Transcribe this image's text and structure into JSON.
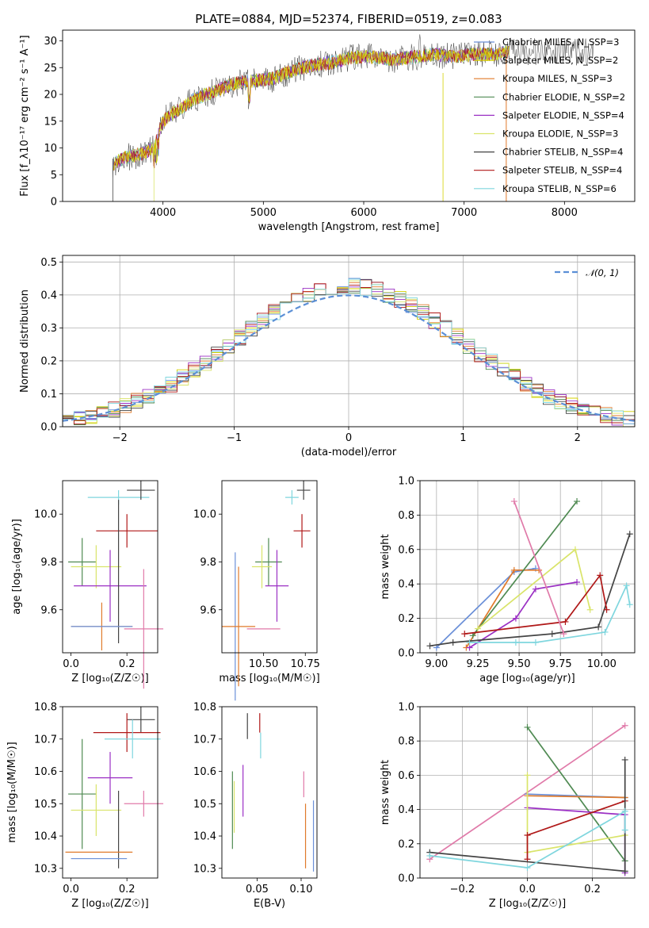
{
  "figure": {
    "title": "PLATE=0884, MJD=52374, FIBERID=0519, z=0.083",
    "colors": {
      "chabrier_miles": "#6a8fd8",
      "salpeter_miles": "#d4d000",
      "kroupa_miles": "#e07a2a",
      "chabrier_elodie": "#4f8a52",
      "salpeter_elodie": "#9b30c4",
      "kroupa_elodie": "#d9e46a",
      "chabrier_stelib": "#444444",
      "salpeter_stelib": "#b01818",
      "kroupa_stelib": "#7fd6de",
      "pink": "#e07aa9"
    }
  },
  "chart_data": [
    {
      "id": "spectrum",
      "type": "line",
      "xlabel": "wavelength [Angstrom, rest frame]",
      "ylabel": "Flux [f_λ10⁻¹⁷ erg cm⁻² s⁻¹ A⁻¹]",
      "xlim": [
        3000,
        8700
      ],
      "ylim": [
        0,
        32
      ],
      "xticks": [
        4000,
        5000,
        6000,
        7000,
        8000
      ],
      "yticks": [
        0,
        5,
        10,
        15,
        20,
        25,
        30
      ],
      "legend_position": "top-right",
      "legend": [
        {
          "label": "Chabrier MILES, N_SSP=3",
          "color": "#6a8fd8"
        },
        {
          "label": "Salpeter MILES, N_SSP=2",
          "color": "#d4d000"
        },
        {
          "label": "Kroupa MILES, N_SSP=3",
          "color": "#e07a2a"
        },
        {
          "label": "Chabrier ELODIE, N_SSP=2",
          "color": "#4f8a52"
        },
        {
          "label": "Salpeter ELODIE, N_SSP=4",
          "color": "#9b30c4"
        },
        {
          "label": "Kroupa ELODIE, N_SSP=3",
          "color": "#d9e46a"
        },
        {
          "label": "Chabrier STELIB, N_SSP=4",
          "color": "#444444"
        },
        {
          "label": "Salpeter STELIB, N_SSP=4",
          "color": "#b01818"
        },
        {
          "label": "Kroupa STELIB, N_SSP=6",
          "color": "#7fd6de"
        }
      ],
      "continuum": {
        "x": [
          3500,
          3600,
          3700,
          3800,
          3900,
          4000,
          4100,
          4200,
          4300,
          4500,
          4700,
          4900,
          5100,
          5300,
          5500,
          5700,
          5900,
          6100,
          6300,
          6500,
          6700,
          6900,
          7100,
          7300,
          7450
        ],
        "y": [
          7,
          8,
          8.5,
          9,
          10,
          15,
          16.5,
          17.5,
          19,
          20.5,
          22,
          22.5,
          23,
          24.5,
          25.5,
          26,
          27,
          27,
          26.5,
          27,
          27.5,
          27,
          27.5,
          27.5,
          28
        ]
      }
    },
    {
      "id": "residuals",
      "type": "histogram",
      "xlabel": "(data-model)/error",
      "ylabel": "Normed distribution",
      "xlim": [
        -2.5,
        2.5
      ],
      "ylim": [
        0,
        0.52
      ],
      "xticks": [
        -2,
        -1,
        0,
        1,
        2
      ],
      "xtick_labels": [
        "−2",
        "−1",
        "0",
        "1",
        "2"
      ],
      "yticks": [
        0.0,
        0.1,
        0.2,
        0.3,
        0.4,
        0.5
      ],
      "grid": true,
      "legend_label": "𝒩(0, 1)",
      "legend_position": "top-right",
      "bin_width": 0.1
    },
    {
      "id": "age-Z",
      "type": "errorbar",
      "xlabel": "Z [log₁₀(Z/Z☉)]",
      "ylabel": "age  [log₁₀(age/yr)]",
      "xlim": [
        -0.03,
        0.31
      ],
      "ylim": [
        9.42,
        10.14
      ],
      "xticks": [
        0.0,
        0.2
      ],
      "yticks": [
        9.6,
        9.8,
        10.0
      ],
      "points": [
        {
          "color": "#7fd6de",
          "x": 0.17,
          "y": 10.07,
          "xerr": 0.11,
          "yerr": 0.03
        },
        {
          "color": "#444444",
          "x": 0.25,
          "y": 10.1,
          "xerr": 0.05,
          "yerr": 0.04
        },
        {
          "color": "#b01818",
          "x": 0.2,
          "y": 9.93,
          "xerr": 0.11,
          "yerr": 0.07
        },
        {
          "color": "#4f8a52",
          "x": 0.04,
          "y": 9.8,
          "xerr": 0.05,
          "yerr": 0.1
        },
        {
          "color": "#d9e46a",
          "x": 0.09,
          "y": 9.78,
          "xerr": 0.09,
          "yerr": 0.09
        },
        {
          "color": "#9b30c4",
          "x": 0.14,
          "y": 9.7,
          "xerr": 0.13,
          "yerr": 0.15
        },
        {
          "color": "#444444",
          "x": 0.17,
          "y": 9.76,
          "xerr": 0.0,
          "yerr": 0.3
        },
        {
          "color": "#e07aa9",
          "x": 0.26,
          "y": 9.52,
          "xerr": 0.07,
          "yerr": 0.25
        },
        {
          "color": "#e07a2a",
          "x": 0.11,
          "y": 9.53,
          "xerr": 0.11,
          "yerr": 0.1
        },
        {
          "color": "#6a8fd8",
          "x": 0.11,
          "y": 9.53,
          "xerr": 0.11,
          "yerr": 0.0
        }
      ]
    },
    {
      "id": "age-mass",
      "type": "errorbar",
      "xlabel": "mass [log₁₀(M/M☉)]",
      "ylabel": "",
      "xlim": [
        10.25,
        10.82
      ],
      "ylim": [
        9.42,
        10.14
      ],
      "xticks": [
        10.5,
        10.75
      ],
      "yticks": [
        9.6,
        9.8,
        10.0
      ],
      "points": [
        {
          "color": "#7fd6de",
          "x": 10.67,
          "y": 10.07,
          "xerr": 0.04,
          "yerr": 0.03
        },
        {
          "color": "#444444",
          "x": 10.74,
          "y": 10.1,
          "xerr": 0.04,
          "yerr": 0.04
        },
        {
          "color": "#b01818",
          "x": 10.73,
          "y": 9.93,
          "xerr": 0.05,
          "yerr": 0.07
        },
        {
          "color": "#4f8a52",
          "x": 10.53,
          "y": 9.8,
          "xerr": 0.08,
          "yerr": 0.1
        },
        {
          "color": "#d9e46a",
          "x": 10.49,
          "y": 9.78,
          "xerr": 0.06,
          "yerr": 0.09
        },
        {
          "color": "#9b30c4",
          "x": 10.58,
          "y": 9.7,
          "xerr": 0.07,
          "yerr": 0.15
        },
        {
          "color": "#6a8fd8",
          "x": 10.33,
          "y": 9.53,
          "xerr": 0.0,
          "yerr": 0.31
        },
        {
          "color": "#e07a2a",
          "x": 10.35,
          "y": 9.53,
          "xerr": 0.1,
          "yerr": 0.25
        },
        {
          "color": "#e07aa9",
          "x": 10.5,
          "y": 9.52,
          "xerr": 0.1,
          "yerr": 0.0
        }
      ]
    },
    {
      "id": "weight-age",
      "type": "line",
      "xlabel": "age  [log₁₀(age/yr)]",
      "ylabel": "mass weight",
      "xlim": [
        8.9,
        10.2
      ],
      "ylim": [
        0,
        1.0
      ],
      "xticks": [
        9.0,
        9.25,
        9.5,
        9.75,
        10.0
      ],
      "yticks": [
        0.0,
        0.2,
        0.4,
        0.6,
        0.8,
        1.0
      ],
      "grid": true,
      "series": [
        {
          "color": "#6a8fd8",
          "x": [
            9.0,
            9.47,
            9.6
          ],
          "y": [
            0.03,
            0.47,
            0.49
          ]
        },
        {
          "color": "#e07a2a",
          "x": [
            9.18,
            9.47,
            9.62
          ],
          "y": [
            0.03,
            0.48,
            0.48
          ]
        },
        {
          "color": "#4f8a52",
          "x": [
            9.22,
            9.85
          ],
          "y": [
            0.1,
            0.88
          ]
        },
        {
          "color": "#9b30c4",
          "x": [
            9.2,
            9.48,
            9.6,
            9.85
          ],
          "y": [
            0.03,
            0.2,
            0.37,
            0.41
          ]
        },
        {
          "color": "#d9e46a",
          "x": [
            9.25,
            9.84,
            9.93
          ],
          "y": [
            0.14,
            0.6,
            0.25
          ]
        },
        {
          "color": "#444444",
          "x": [
            8.96,
            9.1,
            9.7,
            9.98,
            10.17
          ],
          "y": [
            0.04,
            0.06,
            0.11,
            0.15,
            0.69
          ]
        },
        {
          "color": "#b01818",
          "x": [
            9.17,
            9.78,
            9.99,
            10.03
          ],
          "y": [
            0.11,
            0.18,
            0.45,
            0.25
          ]
        },
        {
          "color": "#7fd6de",
          "x": [
            9.2,
            9.48,
            9.6,
            10.02,
            10.15,
            10.17
          ],
          "y": [
            0.06,
            0.06,
            0.06,
            0.12,
            0.39,
            0.28
          ]
        },
        {
          "color": "#e07aa9",
          "x": [
            9.47,
            9.77
          ],
          "y": [
            0.88,
            0.11
          ]
        }
      ]
    },
    {
      "id": "mass-Z",
      "type": "errorbar",
      "xlabel": "Z [log₁₀(Z/Z☉)]",
      "ylabel": "mass [log₁₀(M/M☉)]",
      "xlim": [
        -0.03,
        0.31
      ],
      "ylim": [
        10.27,
        10.8
      ],
      "xticks": [
        0.0,
        0.2
      ],
      "yticks": [
        10.3,
        10.4,
        10.5,
        10.6,
        10.7,
        10.8
      ],
      "points": [
        {
          "color": "#444444",
          "x": 0.25,
          "y": 10.76,
          "xerr": 0.05,
          "yerr": 0.04
        },
        {
          "color": "#b01818",
          "x": 0.2,
          "y": 10.72,
          "xerr": 0.12,
          "yerr": 0.06
        },
        {
          "color": "#7fd6de",
          "x": 0.22,
          "y": 10.7,
          "xerr": 0.1,
          "yerr": 0.06
        },
        {
          "color": "#9b30c4",
          "x": 0.14,
          "y": 10.58,
          "xerr": 0.08,
          "yerr": 0.08
        },
        {
          "color": "#4f8a52",
          "x": 0.04,
          "y": 10.53,
          "xerr": 0.05,
          "yerr": 0.17
        },
        {
          "color": "#e07aa9",
          "x": 0.26,
          "y": 10.5,
          "xerr": 0.07,
          "yerr": 0.04
        },
        {
          "color": "#d9e46a",
          "x": 0.09,
          "y": 10.48,
          "xerr": 0.09,
          "yerr": 0.08
        },
        {
          "color": "#444444",
          "x": 0.17,
          "y": 10.42,
          "xerr": 0.0,
          "yerr": 0.12
        },
        {
          "color": "#e07a2a",
          "x": 0.1,
          "y": 10.35,
          "xerr": 0.12,
          "yerr": 0.0
        },
        {
          "color": "#6a8fd8",
          "x": 0.1,
          "y": 10.33,
          "xerr": 0.1,
          "yerr": 0.0
        }
      ]
    },
    {
      "id": "mass-EBV",
      "type": "errorbar",
      "xlabel": "E(B-V)",
      "ylabel": "",
      "xlim": [
        0.01,
        0.118
      ],
      "ylim": [
        10.27,
        10.8
      ],
      "xticks": [
        0.05,
        0.1
      ],
      "yticks": [
        10.3,
        10.4,
        10.5,
        10.6,
        10.7,
        10.8
      ],
      "points": [
        {
          "color": "#444444",
          "x": 0.039,
          "y": 10.74,
          "xerr": 0,
          "yerr": 0.04
        },
        {
          "color": "#b01818",
          "x": 0.053,
          "y": 10.75,
          "xerr": 0,
          "yerr": 0.03
        },
        {
          "color": "#7fd6de",
          "x": 0.054,
          "y": 10.68,
          "xerr": 0,
          "yerr": 0.04
        },
        {
          "color": "#4f8a52",
          "x": 0.022,
          "y": 10.48,
          "xerr": 0,
          "yerr": 0.12
        },
        {
          "color": "#d9e46a",
          "x": 0.024,
          "y": 10.49,
          "xerr": 0,
          "yerr": 0.08
        },
        {
          "color": "#9b30c4",
          "x": 0.034,
          "y": 10.54,
          "xerr": 0,
          "yerr": 0.08
        },
        {
          "color": "#e07aa9",
          "x": 0.103,
          "y": 10.56,
          "xerr": 0,
          "yerr": 0.04
        },
        {
          "color": "#e07a2a",
          "x": 0.105,
          "y": 10.4,
          "xerr": 0,
          "yerr": 0.1
        },
        {
          "color": "#6a8fd8",
          "x": 0.114,
          "y": 10.4,
          "xerr": 0,
          "yerr": 0.11
        }
      ]
    },
    {
      "id": "weight-Z",
      "type": "line",
      "xlabel": "Z [log₁₀(Z/Z☉)]",
      "ylabel": "mass weight",
      "xlim": [
        -0.33,
        0.33
      ],
      "ylim": [
        0,
        1.0
      ],
      "xticks": [
        -0.2,
        0.0,
        0.2
      ],
      "xtick_labels": [
        "−0.2",
        "0.0",
        "0.2"
      ],
      "yticks": [
        0.0,
        0.2,
        0.4,
        0.6,
        0.8,
        1.0
      ],
      "grid": true,
      "series": [
        {
          "color": "#e07aa9",
          "x": [
            -0.3,
            0.3
          ],
          "y": [
            0.11,
            0.89
          ]
        },
        {
          "color": "#4f8a52",
          "x": [
            0.0,
            0.3
          ],
          "y": [
            0.88,
            0.1
          ]
        },
        {
          "color": "#6a8fd8",
          "x": [
            0.0,
            0.3
          ],
          "y": [
            0.49,
            0.47
          ]
        },
        {
          "color": "#e07a2a",
          "x": [
            0.0,
            0.3
          ],
          "y": [
            0.48,
            0.47
          ]
        },
        {
          "color": "#9b30c4",
          "x": [
            0.0,
            0.3,
            0.3
          ],
          "y": [
            0.41,
            0.37,
            0.03
          ]
        },
        {
          "color": "#d9e46a",
          "x": [
            0.0,
            0.0,
            0.3
          ],
          "y": [
            0.6,
            0.15,
            0.25
          ]
        },
        {
          "color": "#b01818",
          "x": [
            0.0,
            0.0,
            0.3
          ],
          "y": [
            0.11,
            0.25,
            0.45
          ]
        },
        {
          "color": "#444444",
          "x": [
            -0.3,
            0.3,
            0.3
          ],
          "y": [
            0.15,
            0.04,
            0.69
          ]
        },
        {
          "color": "#7fd6de",
          "x": [
            -0.3,
            0.0,
            0.3,
            0.3
          ],
          "y": [
            0.13,
            0.06,
            0.39,
            0.28
          ]
        }
      ]
    }
  ]
}
